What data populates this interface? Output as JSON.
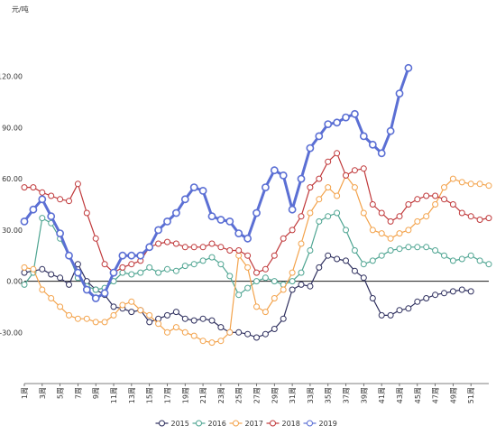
{
  "chart_data": {
    "type": "line",
    "unit_label": "元/吨",
    "x_tick_labels": [
      "1周",
      "3周",
      "5周",
      "7周",
      "9周",
      "11周",
      "13周",
      "15周",
      "17周",
      "19周",
      "21周",
      "23周",
      "25周",
      "27周",
      "29周",
      "31周",
      "33周",
      "35周",
      "37周",
      "39周",
      "41周",
      "43周",
      "45周",
      "47周",
      "49周",
      "51周"
    ],
    "y_tick_labels": [
      "-30.00",
      "0.00",
      "30.00",
      "60.00",
      "90.00",
      "120.00"
    ],
    "ylim": [
      -60,
      150
    ],
    "x_range": [
      1,
      53
    ],
    "grid": false,
    "legend_position": "bottom",
    "series": [
      {
        "name": "2015",
        "color": "#2e2f5e",
        "line_width": 1.2,
        "x": [
          1,
          2,
          3,
          4,
          5,
          6,
          7,
          8,
          9,
          10,
          11,
          12,
          13,
          14,
          15,
          16,
          17,
          18,
          19,
          20,
          21,
          22,
          23,
          24,
          25,
          26,
          27,
          28,
          29,
          30,
          31,
          32,
          33,
          34,
          35,
          36,
          37,
          38,
          39,
          40,
          41,
          42,
          43,
          44,
          45,
          46,
          47,
          48,
          49,
          50,
          51
        ],
        "values": [
          5,
          6,
          7,
          4,
          2,
          -2,
          10,
          0,
          -5,
          -8,
          -15,
          -16,
          -18,
          -17,
          -24,
          -22,
          -20,
          -18,
          -22,
          -23,
          -22,
          -23,
          -27,
          -30,
          -30,
          -31,
          -33,
          -31,
          -28,
          -22,
          -5,
          -2,
          -3,
          8,
          15,
          13,
          12,
          6,
          2,
          -10,
          -20,
          -20,
          -17,
          -16,
          -12,
          -10,
          -8,
          -7,
          -6,
          -5,
          -6
        ]
      },
      {
        "name": "2016",
        "color": "#4fa592",
        "line_width": 1.2,
        "x": [
          1,
          2,
          3,
          4,
          5,
          6,
          7,
          8,
          9,
          10,
          11,
          12,
          13,
          14,
          15,
          16,
          17,
          18,
          19,
          20,
          21,
          22,
          23,
          24,
          25,
          26,
          27,
          28,
          29,
          30,
          31,
          32,
          33,
          34,
          35,
          36,
          37,
          38,
          39,
          40,
          41,
          42,
          43,
          44,
          45,
          46,
          47,
          48,
          49,
          50,
          51,
          52,
          53
        ],
        "values": [
          -2,
          5,
          37,
          34,
          25,
          15,
          2,
          -3,
          -5,
          -4,
          0,
          5,
          4,
          5,
          8,
          5,
          7,
          6,
          9,
          10,
          12,
          14,
          10,
          3,
          -8,
          -4,
          0,
          2,
          0,
          -2,
          0,
          5,
          18,
          35,
          38,
          40,
          30,
          18,
          10,
          12,
          15,
          18,
          19,
          20,
          20,
          20,
          18,
          15,
          12,
          13,
          15,
          12,
          10
        ]
      },
      {
        "name": "2017",
        "color": "#f3a34c",
        "line_width": 1.2,
        "x": [
          1,
          2,
          3,
          4,
          5,
          6,
          7,
          8,
          9,
          10,
          11,
          12,
          13,
          14,
          15,
          16,
          17,
          18,
          19,
          20,
          21,
          22,
          23,
          24,
          25,
          26,
          27,
          28,
          29,
          30,
          31,
          32,
          33,
          34,
          35,
          36,
          37,
          38,
          39,
          40,
          41,
          42,
          43,
          44,
          45,
          46,
          47,
          48,
          49,
          50,
          51,
          52,
          53
        ],
        "values": [
          8,
          7,
          -5,
          -10,
          -15,
          -20,
          -22,
          -22,
          -24,
          -24,
          -20,
          -14,
          -12,
          -17,
          -20,
          -25,
          -30,
          -27,
          -30,
          -32,
          -35,
          -36,
          -35,
          -30,
          15,
          8,
          -15,
          -18,
          -10,
          -5,
          5,
          22,
          40,
          48,
          55,
          50,
          62,
          55,
          40,
          30,
          28,
          25,
          28,
          30,
          35,
          38,
          45,
          55,
          60,
          58,
          57,
          57,
          56
        ]
      },
      {
        "name": "2018",
        "color": "#c0393b",
        "line_width": 1.2,
        "x": [
          1,
          2,
          3,
          4,
          5,
          6,
          7,
          8,
          9,
          10,
          11,
          12,
          13,
          14,
          15,
          16,
          17,
          18,
          19,
          20,
          21,
          22,
          23,
          24,
          25,
          26,
          27,
          28,
          29,
          30,
          31,
          32,
          33,
          34,
          35,
          36,
          37,
          38,
          39,
          40,
          41,
          42,
          43,
          44,
          45,
          46,
          47,
          48,
          49,
          50,
          51,
          52,
          53
        ],
        "values": [
          55,
          55,
          52,
          50,
          48,
          47,
          57,
          40,
          25,
          10,
          5,
          8,
          10,
          12,
          20,
          22,
          23,
          22,
          20,
          20,
          20,
          22,
          20,
          18,
          18,
          15,
          5,
          7,
          15,
          25,
          30,
          38,
          55,
          60,
          70,
          75,
          62,
          65,
          66,
          45,
          40,
          35,
          38,
          45,
          48,
          50,
          50,
          48,
          45,
          40,
          38,
          36,
          37
        ]
      },
      {
        "name": "2019",
        "color": "#5b6fd4",
        "line_width": 3,
        "x": [
          1,
          2,
          3,
          4,
          5,
          6,
          7,
          8,
          9,
          10,
          11,
          12,
          13,
          14,
          15,
          16,
          17,
          18,
          19,
          20,
          21,
          22,
          23,
          24,
          25,
          26,
          27,
          28,
          29,
          30,
          31,
          32,
          33,
          34,
          35,
          36,
          37,
          38,
          39,
          40,
          41,
          42,
          43,
          44
        ],
        "values": [
          35,
          42,
          48,
          38,
          28,
          15,
          5,
          -5,
          -10,
          -7,
          5,
          15,
          15,
          15,
          20,
          30,
          35,
          40,
          48,
          55,
          53,
          38,
          36,
          35,
          28,
          25,
          40,
          55,
          65,
          62,
          42,
          60,
          78,
          85,
          92,
          93,
          96,
          98,
          85,
          80,
          75,
          88,
          110,
          125
        ]
      }
    ]
  }
}
